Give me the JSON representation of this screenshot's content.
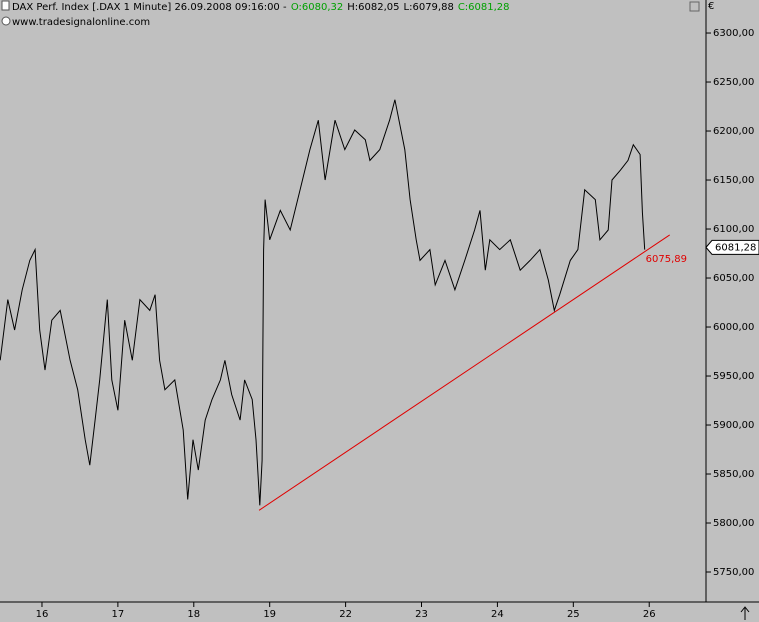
{
  "chart_data": {
    "type": "line",
    "title": "DAX Perf. Index [.DAX  1 Minute] 26.09.2008 09:16:00 -",
    "ohlc": [
      "O:6080,32",
      "H:6082,05",
      "L:6079,88",
      "C:6081,28"
    ],
    "ohlc_colors": [
      "#00a000",
      "#000000",
      "#000000",
      "#00a000"
    ],
    "source": "www.tradesignalonline.com",
    "currency": "€",
    "color": "#000000",
    "x": [
      -0.55,
      -0.45,
      -0.36,
      -0.26,
      -0.16,
      -0.09,
      -0.03,
      0.04,
      0.13,
      0.24,
      0.37,
      0.47,
      0.57,
      0.63,
      0.7,
      0.76,
      0.86,
      0.92,
      1.0,
      1.09,
      1.19,
      1.29,
      1.42,
      1.49,
      1.55,
      1.62,
      1.75,
      1.86,
      1.92,
      1.99,
      2.06,
      2.15,
      2.24,
      2.35,
      2.41,
      2.5,
      2.61,
      2.67,
      2.77,
      2.82,
      2.87,
      2.9,
      2.91,
      2.92,
      2.94,
      3.0,
      3.14,
      3.27,
      3.4,
      3.53,
      3.64,
      3.73,
      3.86,
      3.99,
      4.12,
      4.26,
      4.32,
      4.45,
      4.58,
      4.65,
      4.78,
      4.85,
      4.93,
      4.98,
      5.11,
      5.18,
      5.31,
      5.44,
      5.57,
      5.7,
      5.77,
      5.84,
      5.9,
      6.03,
      6.17,
      6.3,
      6.43,
      6.56,
      6.67,
      6.75,
      6.82,
      6.96,
      7.06,
      7.15,
      7.29,
      7.35,
      7.46,
      7.51,
      7.62,
      7.72,
      7.79,
      7.88,
      7.91,
      7.94
    ],
    "values": [
      5966,
      6028,
      5997,
      6038,
      6068,
      6079,
      5997,
      5956,
      6007,
      6017,
      5966,
      5936,
      5885,
      5859,
      5905,
      5946,
      6028,
      5946,
      5915,
      6007,
      5966,
      6028,
      6017,
      6033,
      5966,
      5936,
      5946,
      5895,
      5824,
      5885,
      5854,
      5905,
      5926,
      5946,
      5966,
      5931,
      5905,
      5946,
      5926,
      5885,
      5818,
      5864,
      5982,
      6079,
      6130,
      6089,
      6119,
      6099,
      6140,
      6181,
      6211,
      6150,
      6211,
      6181,
      6201,
      6191,
      6170,
      6181,
      6211,
      6232,
      6181,
      6130,
      6089,
      6068,
      6079,
      6043,
      6068,
      6038,
      6068,
      6099,
      6119,
      6058,
      6089,
      6079,
      6089,
      6058,
      6068,
      6079,
      6048,
      6017,
      6033,
      6068,
      6079,
      6140,
      6130,
      6089,
      6099,
      6150,
      6160,
      6170,
      6186,
      6176,
      6117,
      6079
    ],
    "trendline": {
      "color": "#e00000",
      "x": [
        2.86,
        8.27
      ],
      "values": [
        5813,
        6094
      ],
      "label": "6075,89"
    },
    "last_price": {
      "value": 6081.28,
      "label": "6081,28"
    },
    "xlim": [
      -0.553,
      8.748
    ],
    "xticks": [
      {
        "value": 0,
        "label": "16"
      },
      {
        "value": 1,
        "label": "17"
      },
      {
        "value": 2,
        "label": "18"
      },
      {
        "value": 3,
        "label": "19"
      },
      {
        "value": 4,
        "label": "22"
      },
      {
        "value": 5,
        "label": "23"
      },
      {
        "value": 6,
        "label": "24"
      },
      {
        "value": 7,
        "label": "25"
      },
      {
        "value": 8,
        "label": "26"
      }
    ],
    "ylim": [
      5719.4,
      6333.7
    ],
    "yticks": [
      {
        "value": 5750,
        "label": "5750,00"
      },
      {
        "value": 5800,
        "label": "5800,00"
      },
      {
        "value": 5850,
        "label": "5850,00"
      },
      {
        "value": 5900,
        "label": "5900,00"
      },
      {
        "value": 5950,
        "label": "5950,00"
      },
      {
        "value": 6000,
        "label": "6000,00"
      },
      {
        "value": 6050,
        "label": "6050,00"
      },
      {
        "value": 6100,
        "label": "6100,00"
      },
      {
        "value": 6150,
        "label": "6150,00"
      },
      {
        "value": 6200,
        "label": "6200,00"
      },
      {
        "value": 6250,
        "label": "6250,00"
      },
      {
        "value": 6300,
        "label": "6300,00"
      }
    ]
  }
}
